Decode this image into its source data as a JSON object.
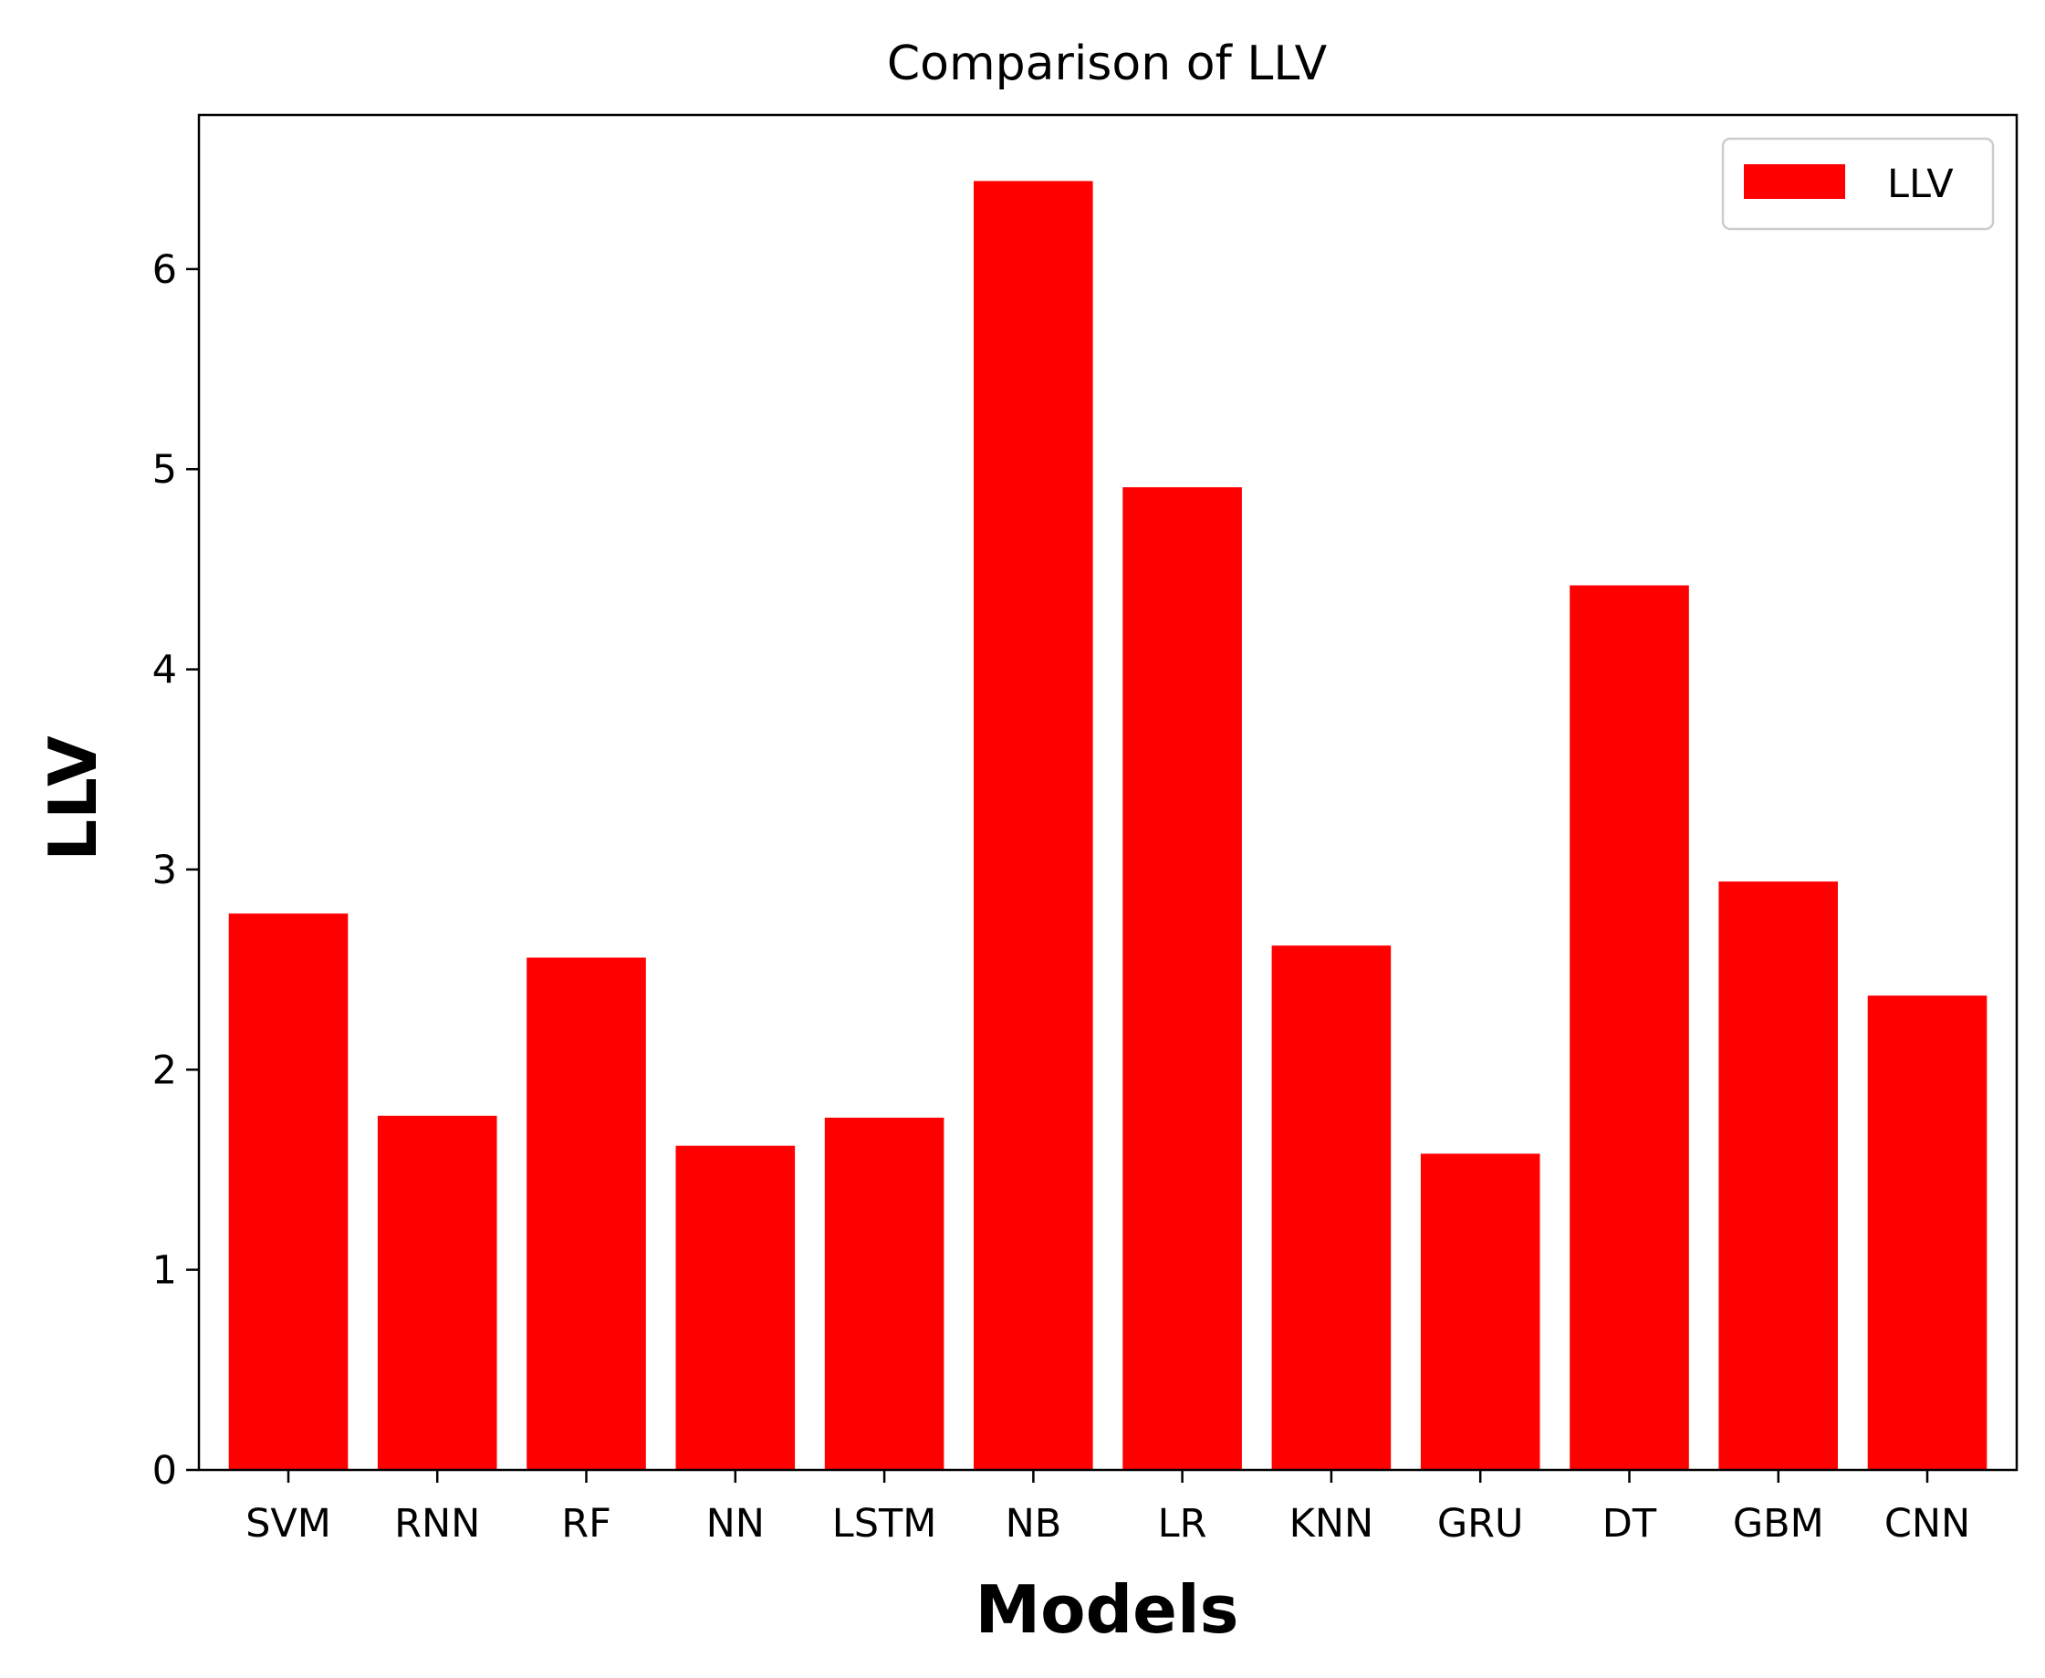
{
  "chart_data": {
    "type": "bar",
    "title": "Comparison of LLV",
    "xlabel": "Models",
    "ylabel": "LLV",
    "categories": [
      "SVM",
      "RNN",
      "RF",
      "NN",
      "LSTM",
      "NB",
      "LR",
      "KNN",
      "GRU",
      "DT",
      "GBM",
      "CNN"
    ],
    "series": [
      {
        "name": "LLV",
        "color": "#ff0000",
        "values": [
          2.78,
          1.77,
          2.56,
          1.62,
          1.76,
          6.44,
          4.91,
          2.62,
          1.58,
          4.42,
          2.94,
          2.37
        ]
      }
    ],
    "ylim": [
      0,
      6.77
    ],
    "yticks": [
      0,
      1,
      2,
      3,
      4,
      5,
      6
    ],
    "grid": false,
    "legend": "top-right"
  }
}
